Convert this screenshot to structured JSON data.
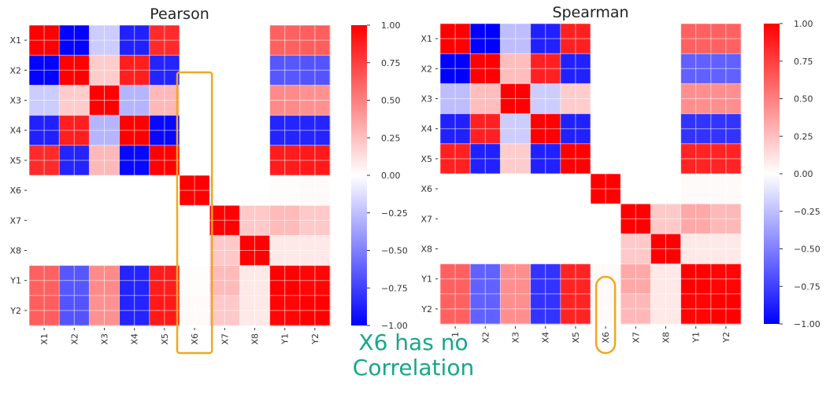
{
  "chart_data": [
    {
      "type": "heatmap",
      "title": "Pearson",
      "x_labels": [
        "X1",
        "X2",
        "X3",
        "X4",
        "X5",
        "X6",
        "X7",
        "X8",
        "Y1",
        "Y2"
      ],
      "y_labels": [
        "X1",
        "X2",
        "X3",
        "X4",
        "X5",
        "X6",
        "X7",
        "X8",
        "Y1",
        "Y2"
      ],
      "colorbar": {
        "min": -1.0,
        "max": 1.0,
        "ticks": [
          "1.00",
          "0.75",
          "0.50",
          "0.25",
          "0.00",
          "−0.25",
          "−0.50",
          "−0.75",
          "−1.00"
        ],
        "colormap": "bwr"
      },
      "values": [
        [
          1.0,
          -0.99,
          -0.2,
          -0.87,
          0.83,
          0.0,
          0.0,
          0.0,
          0.62,
          0.63
        ],
        [
          -0.99,
          1.0,
          0.2,
          0.88,
          -0.86,
          0.0,
          0.0,
          0.0,
          -0.66,
          -0.67
        ],
        [
          -0.2,
          0.2,
          1.0,
          -0.29,
          0.28,
          0.0,
          0.0,
          0.0,
          0.46,
          0.43
        ],
        [
          -0.87,
          0.88,
          -0.29,
          1.0,
          -0.97,
          0.0,
          0.0,
          0.0,
          -0.86,
          -0.86
        ],
        [
          0.83,
          -0.86,
          0.28,
          -0.97,
          1.0,
          0.0,
          0.0,
          0.0,
          0.89,
          0.9
        ],
        [
          0.0,
          0.0,
          0.0,
          0.0,
          0.0,
          1.0,
          0.0,
          0.0,
          0.01,
          0.02
        ],
        [
          0.0,
          0.0,
          0.0,
          0.0,
          0.0,
          0.0,
          1.0,
          0.21,
          0.27,
          0.21
        ],
        [
          0.0,
          0.0,
          0.0,
          0.0,
          0.0,
          0.0,
          0.21,
          1.0,
          0.09,
          0.09
        ],
        [
          0.62,
          -0.66,
          0.46,
          -0.86,
          0.89,
          0.01,
          0.27,
          0.09,
          1.0,
          0.98
        ],
        [
          0.63,
          -0.67,
          0.43,
          -0.86,
          0.9,
          0.02,
          0.21,
          0.09,
          0.98,
          1.0
        ]
      ],
      "highlight": "X6"
    },
    {
      "type": "heatmap",
      "title": "Spearman",
      "x_labels": [
        "X1",
        "X2",
        "X3",
        "X4",
        "X5",
        "X6",
        "X7",
        "X8",
        "Y1",
        "Y2"
      ],
      "y_labels": [
        "X1",
        "X2",
        "X3",
        "X4",
        "X5",
        "X6",
        "X7",
        "X8",
        "Y1",
        "Y2"
      ],
      "colorbar": {
        "min": -1.0,
        "max": 1.0,
        "ticks": [
          "1.00",
          "0.75",
          "0.50",
          "0.25",
          "0.00",
          "−0.25",
          "−0.50",
          "−0.75",
          "−1.00"
        ],
        "colormap": "bwr"
      },
      "values": [
        [
          1.0,
          -1.0,
          -0.26,
          -0.87,
          0.87,
          0.0,
          0.0,
          0.0,
          0.62,
          0.62
        ],
        [
          -1.0,
          1.0,
          0.26,
          0.87,
          -0.87,
          0.0,
          0.0,
          0.0,
          -0.62,
          -0.62
        ],
        [
          -0.26,
          0.26,
          1.0,
          -0.2,
          0.2,
          0.0,
          0.0,
          0.0,
          0.44,
          0.44
        ],
        [
          -0.87,
          0.87,
          -0.2,
          1.0,
          -0.87,
          0.0,
          0.0,
          0.0,
          -0.8,
          -0.8
        ],
        [
          0.87,
          -0.87,
          0.2,
          -0.87,
          1.0,
          0.0,
          0.0,
          0.0,
          0.86,
          0.86
        ],
        [
          0.0,
          0.0,
          0.0,
          0.0,
          0.0,
          1.0,
          0.0,
          0.0,
          0.02,
          0.02
        ],
        [
          0.0,
          0.0,
          0.0,
          0.0,
          0.0,
          0.0,
          1.0,
          0.21,
          0.34,
          0.28
        ],
        [
          0.0,
          0.0,
          0.0,
          0.0,
          0.0,
          0.0,
          0.21,
          1.0,
          0.09,
          0.09
        ],
        [
          0.62,
          -0.62,
          0.44,
          -0.8,
          0.86,
          0.02,
          0.34,
          0.09,
          1.0,
          0.98
        ],
        [
          0.62,
          -0.62,
          0.44,
          -0.8,
          0.86,
          0.02,
          0.28,
          0.09,
          0.98,
          1.0
        ]
      ],
      "highlight": "X6"
    }
  ],
  "annotation": {
    "line1": "X6 has no",
    "line2": "Correlation",
    "color": "#17a789"
  },
  "highlight_color": "#f0a81c"
}
